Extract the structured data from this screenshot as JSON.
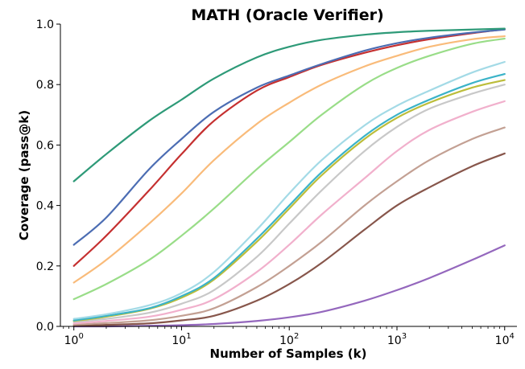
{
  "chart_data": {
    "type": "line",
    "title": "MATH (Oracle Verifier)",
    "xlabel": "Number of Samples (k)",
    "ylabel": "Coverage (pass@k)",
    "xscale": "log",
    "xlim": [
      0.75,
      13000
    ],
    "ylim": [
      0.0,
      1.0
    ],
    "grid": false,
    "legend": "none",
    "x": [
      1,
      2,
      5,
      10,
      20,
      50,
      100,
      200,
      500,
      1000,
      2000,
      5000,
      10000
    ],
    "xticks": [
      {
        "base": "10",
        "exp": "0",
        "value": 1
      },
      {
        "base": "10",
        "exp": "1",
        "value": 10
      },
      {
        "base": "10",
        "exp": "2",
        "value": 100
      },
      {
        "base": "10",
        "exp": "3",
        "value": 1000
      },
      {
        "base": "10",
        "exp": "4",
        "value": 10000
      }
    ],
    "yticks": [
      "0.0",
      "0.2",
      "0.4",
      "0.6",
      "0.8",
      "1.0"
    ],
    "series": [
      {
        "color": "#2e9a78",
        "values": [
          0.48,
          0.57,
          0.68,
          0.75,
          0.82,
          0.89,
          0.925,
          0.948,
          0.965,
          0.973,
          0.978,
          0.982,
          0.985
        ]
      },
      {
        "color": "#4c6db3",
        "values": [
          0.27,
          0.36,
          0.52,
          0.62,
          0.71,
          0.79,
          0.83,
          0.868,
          0.912,
          0.937,
          0.955,
          0.972,
          0.982
        ]
      },
      {
        "color": "#c53030",
        "values": [
          0.2,
          0.3,
          0.45,
          0.57,
          0.68,
          0.78,
          0.825,
          0.865,
          0.905,
          0.93,
          0.95,
          0.97,
          0.983
        ]
      },
      {
        "color": "#f9bb7a",
        "values": [
          0.145,
          0.22,
          0.34,
          0.44,
          0.55,
          0.67,
          0.74,
          0.8,
          0.86,
          0.895,
          0.925,
          0.95,
          0.96
        ]
      },
      {
        "color": "#99dd88",
        "values": [
          0.09,
          0.14,
          0.22,
          0.3,
          0.39,
          0.52,
          0.61,
          0.7,
          0.8,
          0.855,
          0.895,
          0.935,
          0.952
        ]
      },
      {
        "color": "#a3dae6",
        "values": [
          0.025,
          0.04,
          0.07,
          0.11,
          0.18,
          0.32,
          0.44,
          0.55,
          0.665,
          0.73,
          0.78,
          0.84,
          0.875
        ]
      },
      {
        "color": "#3bb3c8",
        "values": [
          0.02,
          0.035,
          0.06,
          0.1,
          0.16,
          0.29,
          0.4,
          0.51,
          0.63,
          0.7,
          0.75,
          0.805,
          0.835
        ]
      },
      {
        "color": "#bcbd3a",
        "values": [
          0.018,
          0.032,
          0.058,
          0.095,
          0.155,
          0.28,
          0.39,
          0.5,
          0.62,
          0.69,
          0.74,
          0.79,
          0.815
        ]
      },
      {
        "color": "#c8c8c8",
        "values": [
          0.015,
          0.025,
          0.045,
          0.075,
          0.12,
          0.23,
          0.34,
          0.45,
          0.58,
          0.66,
          0.72,
          0.77,
          0.8
        ]
      },
      {
        "color": "#f1b0cc",
        "values": [
          0.01,
          0.018,
          0.032,
          0.055,
          0.09,
          0.18,
          0.27,
          0.37,
          0.49,
          0.58,
          0.65,
          0.71,
          0.745
        ]
      },
      {
        "color": "#c3a093",
        "values": [
          0.006,
          0.011,
          0.02,
          0.035,
          0.06,
          0.13,
          0.2,
          0.28,
          0.4,
          0.48,
          0.55,
          0.62,
          0.658
        ]
      },
      {
        "color": "#87564b",
        "values": [
          0.002,
          0.005,
          0.01,
          0.02,
          0.035,
          0.085,
          0.14,
          0.21,
          0.32,
          0.4,
          0.46,
          0.53,
          0.572
        ]
      },
      {
        "color": "#9467bd",
        "values": [
          0.0,
          0.0,
          0.002,
          0.004,
          0.008,
          0.018,
          0.03,
          0.048,
          0.085,
          0.12,
          0.16,
          0.22,
          0.268
        ]
      }
    ]
  }
}
